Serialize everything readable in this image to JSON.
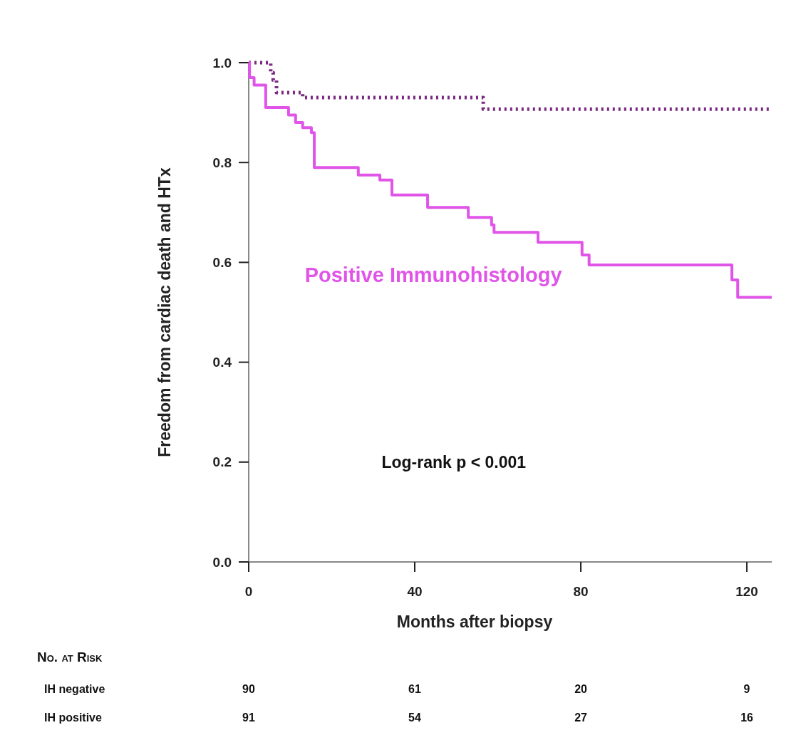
{
  "chart_data": {
    "type": "step",
    "xlabel": "Months after biopsy",
    "ylabel": "Freedom from cardiac death and HTx",
    "xlim": [
      0,
      126
    ],
    "ylim": [
      0,
      1
    ],
    "xticks": [
      0,
      40,
      80,
      120
    ],
    "yticks": [
      {
        "value": 0,
        "label": "0.0"
      },
      0.2,
      0.4,
      0.6,
      0.8,
      {
        "value": 1,
        "label": "1.0"
      }
    ],
    "grid": false,
    "legend": false,
    "marker": "none",
    "series": [
      {
        "color": "#7a2a80",
        "line_style": "dotted",
        "x": [
          0,
          5.3,
          5.9,
          6.7,
          13.0,
          56.5,
          126
        ],
        "values": [
          1.0,
          0.98,
          0.965,
          0.94,
          0.93,
          0.907,
          0.907
        ]
      },
      {
        "name": "Positive Immunohistology",
        "color": "#e055e8",
        "line_style": "solid",
        "x": [
          0,
          0.2,
          1.3,
          4.1,
          9.6,
          11.3,
          13.0,
          15.1,
          15.8,
          26.4,
          31.6,
          34.5,
          43.1,
          52.9,
          58.5,
          59.1,
          69.7,
          80.3,
          82.0,
          116.4,
          117.8,
          126
        ],
        "values": [
          1.0,
          0.97,
          0.955,
          0.91,
          0.895,
          0.88,
          0.87,
          0.86,
          0.79,
          0.775,
          0.765,
          0.735,
          0.71,
          0.69,
          0.675,
          0.66,
          0.64,
          0.615,
          0.595,
          0.565,
          0.53,
          0.53
        ]
      }
    ],
    "annotations": [
      "Log-rank p < 0.001",
      "No. at Risk",
      "IH negative",
      "90",
      "61",
      "20",
      "9",
      "IH positive",
      "91",
      "54",
      "27",
      "16"
    ]
  }
}
